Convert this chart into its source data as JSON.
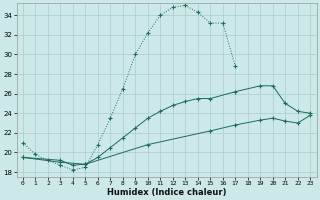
{
  "xlabel": "Humidex (Indice chaleur)",
  "ylabel": "",
  "bg_color": "#cde8e8",
  "grid_color": "#aacccc",
  "line_color": "#1a6b5a",
  "xlim": [
    -0.5,
    23.5
  ],
  "ylim": [
    17.5,
    35.2
  ],
  "xticks": [
    0,
    1,
    2,
    3,
    4,
    5,
    6,
    7,
    8,
    9,
    10,
    11,
    12,
    13,
    14,
    15,
    16,
    17,
    18,
    19,
    20,
    21,
    22,
    23
  ],
  "yticks": [
    18,
    20,
    22,
    24,
    26,
    28,
    30,
    32,
    34
  ],
  "line1_x": [
    0,
    1,
    2,
    3,
    4,
    5,
    6,
    7,
    8,
    9,
    10,
    11,
    12,
    13,
    14,
    15,
    16,
    17
  ],
  "line1_y": [
    21.0,
    19.8,
    19.2,
    18.7,
    18.2,
    18.5,
    20.8,
    23.5,
    26.5,
    30.0,
    32.2,
    34.0,
    34.8,
    35.0,
    34.3,
    33.2,
    33.2,
    28.8
  ],
  "line2_x": [
    0,
    3,
    4,
    5,
    6,
    7,
    8,
    9,
    10,
    11,
    12,
    13,
    14,
    15,
    17,
    19,
    20,
    21,
    22,
    23
  ],
  "line2_y": [
    19.5,
    19.2,
    18.7,
    18.8,
    19.5,
    20.5,
    21.5,
    22.5,
    23.5,
    24.2,
    24.8,
    25.2,
    25.5,
    25.5,
    26.2,
    26.8,
    26.8,
    25.0,
    24.2,
    24.0
  ],
  "line3_x": [
    0,
    3,
    5,
    10,
    15,
    17,
    19,
    20,
    21,
    22,
    23
  ],
  "line3_y": [
    19.5,
    19.0,
    18.8,
    20.8,
    22.2,
    22.8,
    23.3,
    23.5,
    23.2,
    23.0,
    23.8
  ]
}
